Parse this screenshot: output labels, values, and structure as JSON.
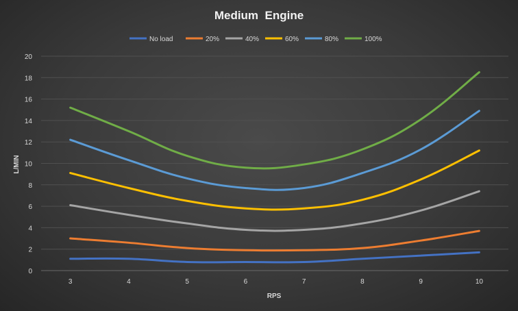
{
  "chart_data": {
    "type": "line",
    "title": "Medium  Engine",
    "xlabel": "RPS",
    "ylabel": "L/MIN",
    "x": [
      3,
      4,
      5,
      6,
      7,
      8,
      9,
      10
    ],
    "ylim": [
      0,
      20
    ],
    "yticks": [
      0,
      2,
      4,
      6,
      8,
      10,
      12,
      14,
      16,
      18,
      20
    ],
    "grid": true,
    "legend": "top",
    "series": [
      {
        "name": "No load",
        "color": "#4472c4",
        "values": [
          1.1,
          1.1,
          0.8,
          0.8,
          0.8,
          1.1,
          1.4,
          1.7
        ]
      },
      {
        "name": "20%",
        "color": "#ed7d31",
        "values": [
          3.0,
          2.6,
          2.1,
          1.9,
          1.9,
          2.1,
          2.8,
          3.7
        ]
      },
      {
        "name": "40%",
        "color": "#a5a5a5",
        "values": [
          6.1,
          5.2,
          4.4,
          3.8,
          3.8,
          4.4,
          5.6,
          7.4
        ]
      },
      {
        "name": "60%",
        "color": "#ffc000",
        "values": [
          9.1,
          7.7,
          6.5,
          5.8,
          5.8,
          6.6,
          8.5,
          11.2
        ]
      },
      {
        "name": "80%",
        "color": "#5b9bd5",
        "values": [
          12.2,
          10.3,
          8.6,
          7.7,
          7.7,
          9.1,
          11.3,
          14.9
        ]
      },
      {
        "name": "100%",
        "color": "#70ad47",
        "values": [
          15.2,
          13.0,
          10.7,
          9.6,
          9.9,
          11.3,
          14.1,
          18.5
        ]
      }
    ]
  }
}
